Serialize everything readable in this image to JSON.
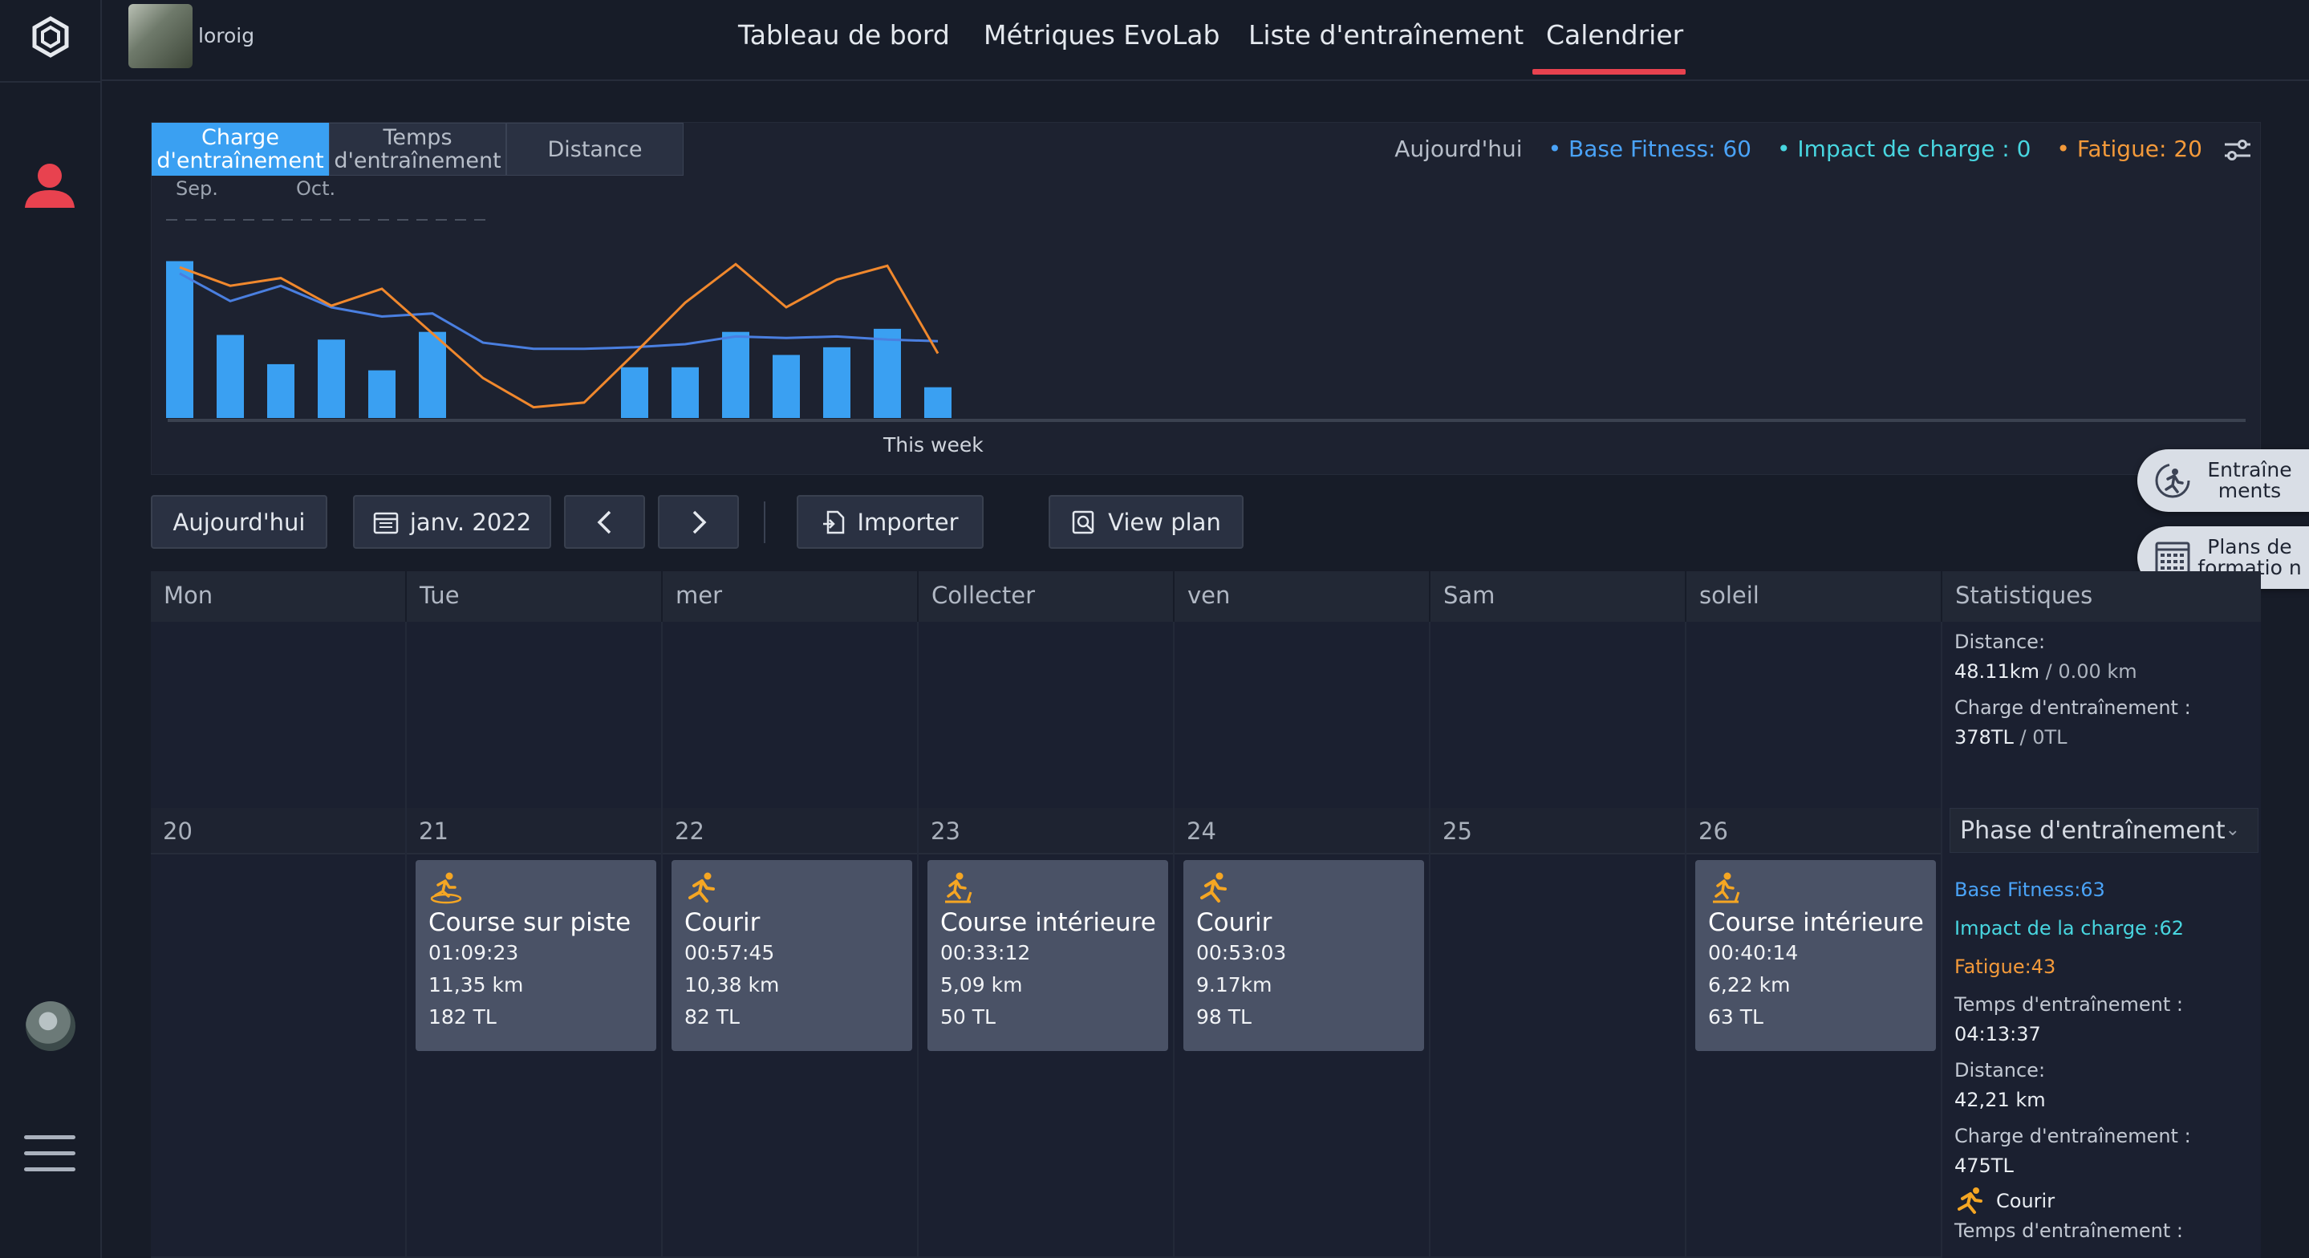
{
  "app": {
    "username": "loroig"
  },
  "nav": {
    "items": [
      "Tableau de bord",
      "Métriques EvoLab",
      "Liste d'entraînement",
      "Calendrier"
    ],
    "active": "Calendrier"
  },
  "chart": {
    "tabs": [
      "Charge d'entraînement",
      "Temps d'entraînement",
      "Distance"
    ],
    "active_tab": "Charge d'entraînement",
    "legend": {
      "today": "Aujourd'hui",
      "base_fitness": "• Base Fitness: 60",
      "impact": "• Impact de charge : 0",
      "fatigue": "• Fatigue: 20"
    },
    "month_labels": [
      "Sep.",
      "Oct."
    ],
    "this_week_label": "This week",
    "colors": {
      "bars": "#3aa0f2",
      "base_fitness": "#4a7fe0",
      "fatigue": "#f0882d"
    }
  },
  "chart_data": {
    "type": "bar",
    "title": "",
    "series": [
      {
        "name": "Charge d'entraînement",
        "type": "bar",
        "values": [
          510,
          270,
          175,
          255,
          155,
          280,
          0,
          0,
          0,
          165,
          165,
          280,
          205,
          230,
          290,
          100
        ]
      },
      {
        "name": "Base Fitness",
        "type": "line",
        "values": [
          470,
          380,
          430,
          360,
          330,
          340,
          245,
          225,
          225,
          230,
          240,
          265,
          260,
          265,
          255,
          250
        ]
      },
      {
        "name": "Fatigue",
        "type": "line",
        "values": [
          490,
          430,
          455,
          365,
          420,
          275,
          130,
          35,
          50,
          210,
          375,
          500,
          360,
          450,
          495,
          210
        ]
      }
    ],
    "ylim": [
      0,
      540
    ]
  },
  "toolbar": {
    "today": "Aujourd'hui",
    "month": "janv. 2022",
    "import": "Importer",
    "view_plan": "View plan"
  },
  "floating": {
    "workouts": "Entraîne ments",
    "plans": "Plans de formatio n"
  },
  "calendar": {
    "headers": [
      "Mon",
      "Tue",
      "mer",
      "Collecter",
      "ven",
      "Sam",
      "soleil",
      "Statistiques"
    ],
    "week1_stats": {
      "distance_label": "Distance:",
      "distance_value": "48.11km",
      "distance_goal": " / 0.00 km",
      "load_label": "Charge d'entraînement :",
      "load_value": "378TL",
      "load_goal": " / 0TL"
    },
    "week2_days": [
      "20",
      "21",
      "22",
      "23",
      "24",
      "25",
      "26"
    ],
    "phase_label": "Phase d'entraînement",
    "week2_stats": {
      "base": "Base Fitness:63",
      "impact": "Impact de la charge :62",
      "fatigue": "Fatigue:43",
      "time_label": "Temps d'entraînement :",
      "time_value": "04:13:37",
      "distance_label": "Distance:",
      "distance_value": "42,21 km",
      "load_label": "Charge d'entraînement :",
      "load_value": "475TL",
      "run_label": "Courir",
      "run_time_label": "Temps d'entraînement :"
    },
    "activities": [
      {
        "title": "Course sur piste",
        "duration": "01:09:23",
        "distance": "11,35 km",
        "load": "182 TL"
      },
      {
        "title": "Courir",
        "duration": "00:57:45",
        "distance": "10,38 km",
        "load": "82 TL"
      },
      {
        "title": "Course intérieure",
        "duration": "00:33:12",
        "distance": "5,09 km",
        "load": "50 TL"
      },
      {
        "title": "Courir",
        "duration": "00:53:03",
        "distance": "9.17km",
        "load": "98 TL"
      },
      {
        "title": "Course intérieure",
        "duration": "00:40:14",
        "distance": "6,22 km",
        "load": "63 TL"
      }
    ]
  }
}
